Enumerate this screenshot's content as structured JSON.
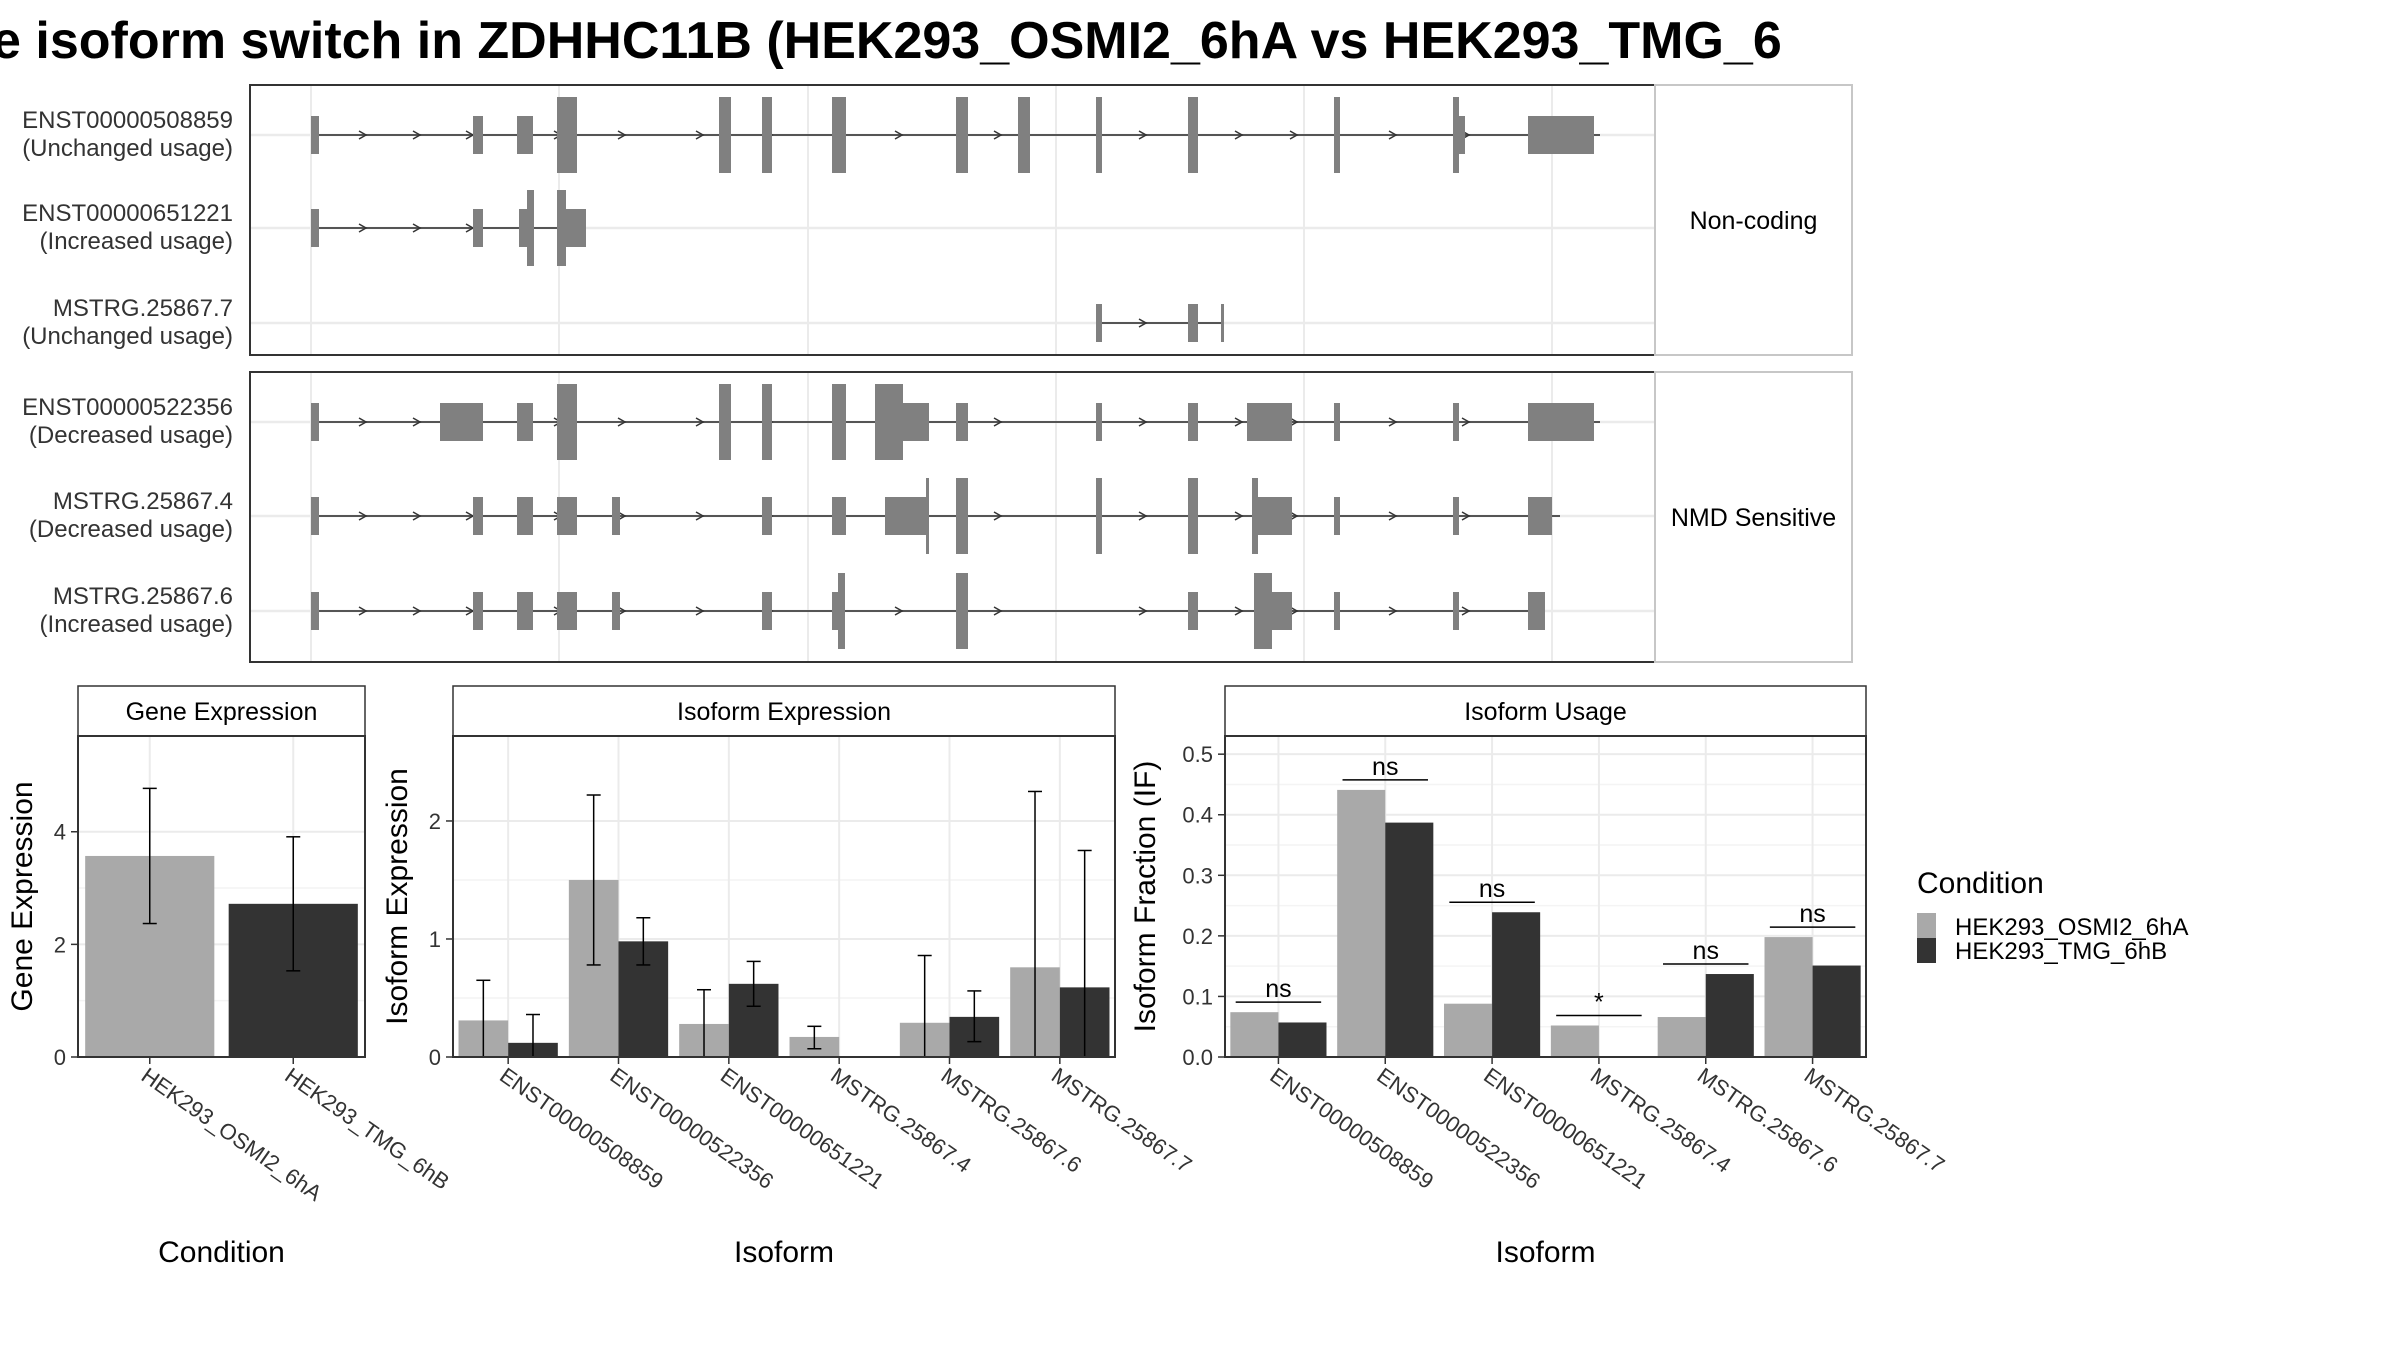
{
  "title": "e isoform switch in ZDHHC11B (HEK293_OSMI2_6hA vs HEK293_TMG_6",
  "colors": {
    "cond_a": "#a9a9a9",
    "cond_b": "#333333",
    "exon": "#808080",
    "grid": "#ebebeb",
    "frame": "#333333"
  },
  "structure": {
    "facets": [
      {
        "label": "Non-coding",
        "isoforms": [
          {
            "name": "ENST00000508859",
            "usage": "(Unchanged usage)"
          },
          {
            "name": "ENST00000651221",
            "usage": "(Increased usage)"
          },
          {
            "name": "MSTRG.25867.7",
            "usage": "(Unchanged usage)"
          }
        ]
      },
      {
        "label": "NMD Sensitive",
        "isoforms": [
          {
            "name": "ENST00000522356",
            "usage": "(Decreased usage)"
          },
          {
            "name": "MSTRG.25867.4",
            "usage": "(Decreased usage)"
          },
          {
            "name": "MSTRG.25867.6",
            "usage": "(Increased usage)"
          }
        ]
      }
    ]
  },
  "legend": {
    "title": "Condition",
    "items": [
      "HEK293_OSMI2_6hA",
      "HEK293_TMG_6hB"
    ]
  },
  "chart_data": [
    {
      "type": "bar",
      "panel": "Gene Expression",
      "xlabel": "Condition",
      "ylabel": "Gene Expression",
      "categories": [
        "HEK293_OSMI2_6hA",
        "HEK293_TMG_6hB"
      ],
      "values": [
        3.57,
        2.72
      ],
      "errors": [
        [
          2.37,
          4.77
        ],
        [
          1.53,
          3.91
        ]
      ],
      "yticks": [
        0,
        2,
        4
      ],
      "ylim": [
        0,
        5.7
      ]
    },
    {
      "type": "bar",
      "panel": "Isoform Expression",
      "xlabel": "Isoform",
      "ylabel": "Isoform Expression",
      "categories": [
        "ENST00000508859",
        "ENST00000522356",
        "ENST00000651221",
        "MSTRG.25867.4",
        "MSTRG.25867.6",
        "MSTRG.25867.7"
      ],
      "series": [
        {
          "name": "HEK293_OSMI2_6hA",
          "values": [
            0.31,
            1.5,
            0.28,
            0.17,
            0.29,
            0.76
          ],
          "errors": [
            [
              0,
              0.65
            ],
            [
              0.78,
              2.22
            ],
            [
              0,
              0.57
            ],
            [
              0.07,
              0.26
            ],
            [
              0,
              0.86
            ],
            [
              0,
              2.25
            ]
          ]
        },
        {
          "name": "HEK293_TMG_6hB",
          "values": [
            0.12,
            0.98,
            0.62,
            0.0,
            0.34,
            0.59
          ],
          "errors": [
            [
              0,
              0.36
            ],
            [
              0.78,
              1.18
            ],
            [
              0.43,
              0.81
            ],
            [
              0,
              0
            ],
            [
              0.13,
              0.56
            ],
            [
              0,
              1.75
            ]
          ]
        }
      ],
      "yticks": [
        0,
        1,
        2
      ],
      "ylim": [
        0,
        2.72
      ]
    },
    {
      "type": "bar",
      "panel": "Isoform Usage",
      "xlabel": "Isoform",
      "ylabel": "Isoform Fraction (IF)",
      "categories": [
        "ENST00000508859",
        "ENST00000522356",
        "ENST00000651221",
        "MSTRG.25867.4",
        "MSTRG.25867.6",
        "MSTRG.25867.7"
      ],
      "series": [
        {
          "name": "HEK293_OSMI2_6hA",
          "values": [
            0.074,
            0.441,
            0.088,
            0.052,
            0.066,
            0.198
          ]
        },
        {
          "name": "HEK293_TMG_6hB",
          "values": [
            0.057,
            0.387,
            0.239,
            0.0,
            0.137,
            0.151
          ]
        }
      ],
      "significance": [
        "ns",
        "ns",
        "ns",
        "*",
        "ns",
        "ns"
      ],
      "yticks": [
        0.0,
        0.1,
        0.2,
        0.3,
        0.4,
        0.5
      ],
      "ylim": [
        0,
        0.53
      ]
    }
  ]
}
